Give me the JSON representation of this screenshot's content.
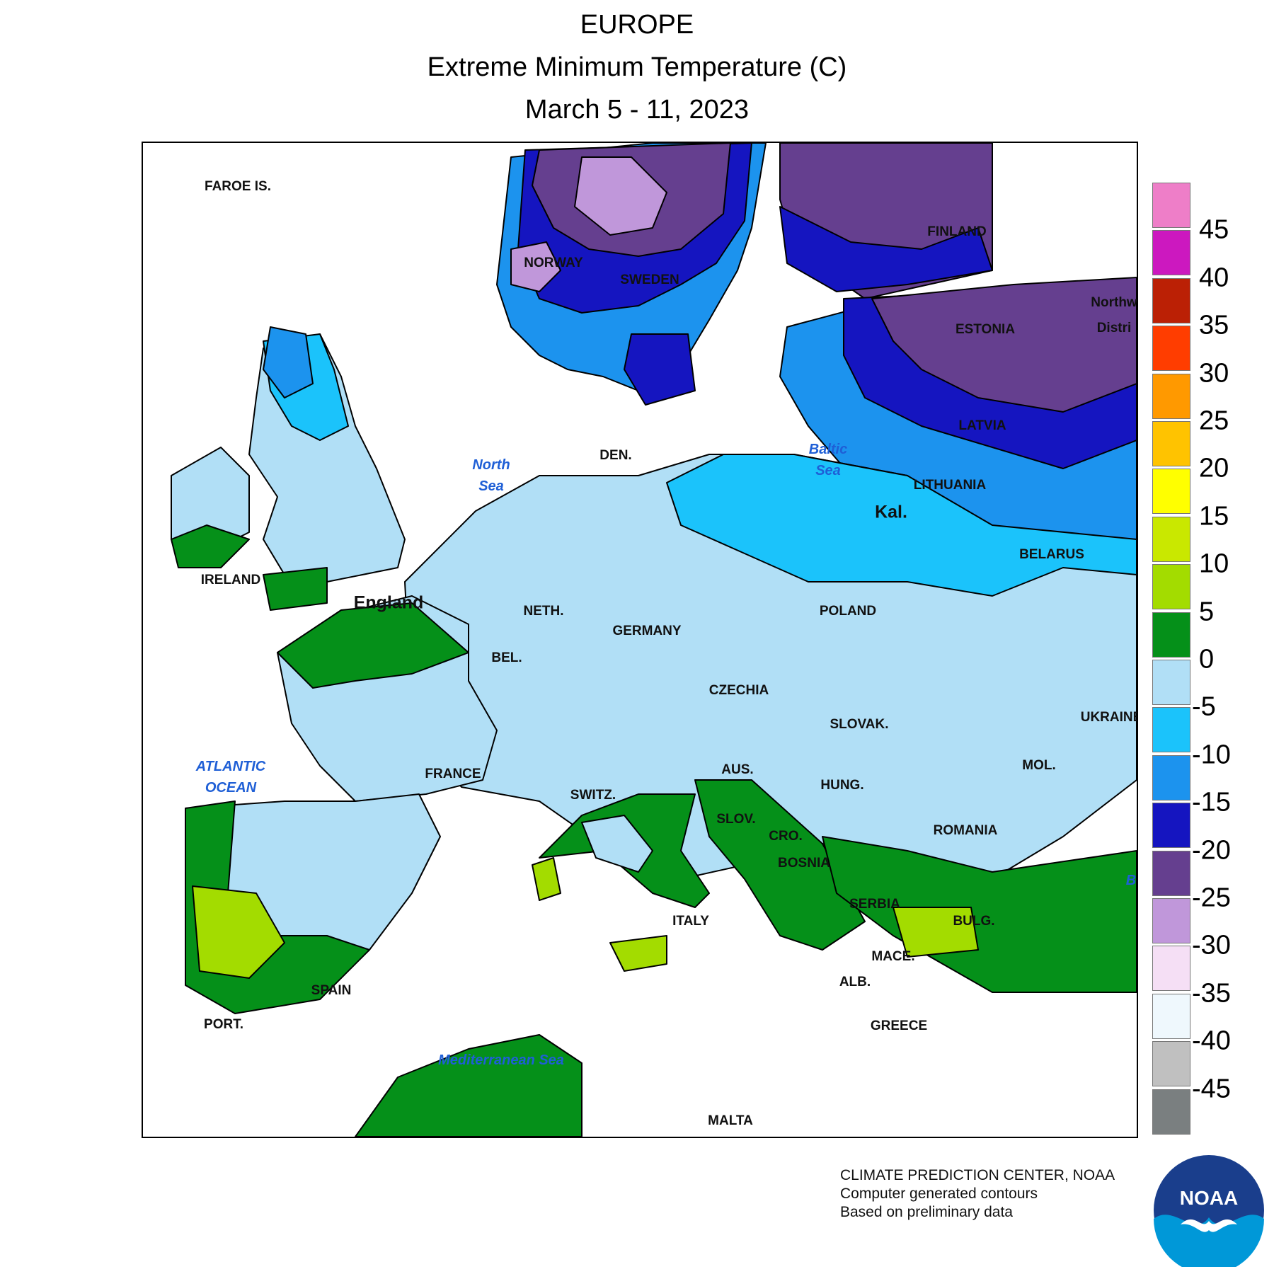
{
  "header": {
    "region": "EUROPE",
    "title": "Extreme Minimum Temperature (C)",
    "period": "March 5 - 11, 2023"
  },
  "map": {
    "labels": [
      {
        "key": "faroe",
        "text": "FAROE IS."
      },
      {
        "key": "norway",
        "text": "NORWAY"
      },
      {
        "key": "sweden",
        "text": "SWEDEN"
      },
      {
        "key": "finland",
        "text": "FINLAND"
      },
      {
        "key": "northwest_line1",
        "text": "Northw"
      },
      {
        "key": "northwest_line2",
        "text": "Distri"
      },
      {
        "key": "estonia",
        "text": "ESTONIA"
      },
      {
        "key": "latvia",
        "text": "LATVIA"
      },
      {
        "key": "lithuania",
        "text": "LITHUANIA"
      },
      {
        "key": "kal",
        "text": "Kal."
      },
      {
        "key": "belarus",
        "text": "BELARUS"
      },
      {
        "key": "den",
        "text": "DEN."
      },
      {
        "key": "ireland",
        "text": "IRELAND"
      },
      {
        "key": "england",
        "text": "England"
      },
      {
        "key": "neth",
        "text": "NETH."
      },
      {
        "key": "bel",
        "text": "BEL."
      },
      {
        "key": "germany",
        "text": "GERMANY"
      },
      {
        "key": "poland",
        "text": "POLAND"
      },
      {
        "key": "czechia",
        "text": "CZECHIA"
      },
      {
        "key": "slovak",
        "text": "SLOVAK."
      },
      {
        "key": "ukraine",
        "text": "UKRAINE"
      },
      {
        "key": "france",
        "text": "FRANCE"
      },
      {
        "key": "switz",
        "text": "SWITZ."
      },
      {
        "key": "aus",
        "text": "AUS."
      },
      {
        "key": "hung",
        "text": "HUNG."
      },
      {
        "key": "mol",
        "text": "MOL."
      },
      {
        "key": "slov",
        "text": "SLOV."
      },
      {
        "key": "cro",
        "text": "CRO."
      },
      {
        "key": "romania",
        "text": "ROMANIA"
      },
      {
        "key": "bosnia",
        "text": "BOSNIA"
      },
      {
        "key": "serbia",
        "text": "SERBIA"
      },
      {
        "key": "italy",
        "text": "ITALY"
      },
      {
        "key": "bulg",
        "text": "BULG."
      },
      {
        "key": "mace",
        "text": "MACE."
      },
      {
        "key": "alb",
        "text": "ALB."
      },
      {
        "key": "greece",
        "text": "GREECE"
      },
      {
        "key": "spain",
        "text": "SPAIN"
      },
      {
        "key": "port",
        "text": "PORT."
      },
      {
        "key": "malta",
        "text": "MALTA"
      }
    ],
    "water_labels": [
      {
        "key": "north_sea",
        "line1": "North",
        "line2": "Sea"
      },
      {
        "key": "baltic_sea",
        "line1": "Baltic",
        "line2": "Sea"
      },
      {
        "key": "atlantic",
        "line1": "ATLANTIC",
        "line2": "OCEAN"
      },
      {
        "key": "med",
        "line1": "Mediterranean Sea",
        "line2": ""
      },
      {
        "key": "black_sea_edge",
        "line1": "B",
        "line2": ""
      }
    ]
  },
  "legend": {
    "bins": [
      {
        "color": "#ee7ec8"
      },
      {
        "color": "#cc18bf"
      },
      {
        "color": "#bb2005"
      },
      {
        "color": "#ff3d00"
      },
      {
        "color": "#ff9900"
      },
      {
        "color": "#ffc300"
      },
      {
        "color": "#ffff00"
      },
      {
        "color": "#c9e800"
      },
      {
        "color": "#a3dc00"
      },
      {
        "color": "#059019"
      },
      {
        "color": "#b1dff6"
      },
      {
        "color": "#1bc3fb"
      },
      {
        "color": "#1c93ee"
      },
      {
        "color": "#1515c0"
      },
      {
        "color": "#653f8f"
      },
      {
        "color": "#c097da"
      },
      {
        "color": "#f5dff5"
      },
      {
        "color": "#eff8fd"
      },
      {
        "color": "#c0c0c0"
      },
      {
        "color": "#7a7f80"
      }
    ],
    "ticks": [
      "45",
      "40",
      "35",
      "30",
      "25",
      "20",
      "15",
      "10",
      "5",
      "0",
      "-5",
      "-10",
      "-15",
      "-20",
      "-25",
      "-30",
      "-35",
      "-40",
      "-45"
    ]
  },
  "credits": {
    "line1": "CLIMATE PREDICTION CENTER, NOAA",
    "line2": "Computer generated contours",
    "line3": "Based on preliminary data"
  },
  "logo": {
    "text": "NOAA",
    "outer_color": "#1a3e8c",
    "inner_color": "#0098d8"
  }
}
